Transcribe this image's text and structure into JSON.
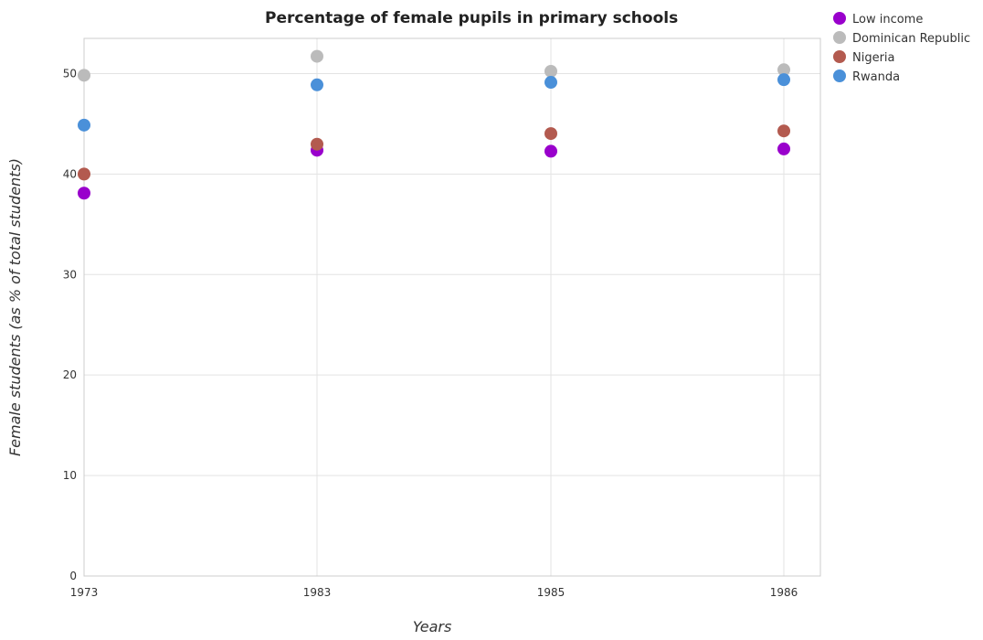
{
  "chart_data": {
    "type": "scatter",
    "title": "Percentage of female pupils in primary schools",
    "xlabel": "Years",
    "ylabel": "Female students (as % of total students)",
    "categories": [
      "1973",
      "1983",
      "1985",
      "1986"
    ],
    "y_ticks": [
      "0",
      "10",
      "20",
      "30",
      "40",
      "50"
    ],
    "ylim": [
      0,
      53.5
    ],
    "grid": true,
    "legend_position": "top-right",
    "series": [
      {
        "name": "Low income",
        "color": "#9900cc",
        "values": [
          38.1,
          42.37,
          42.27,
          42.5
        ]
      },
      {
        "name": "Dominican Republic",
        "color": "#bbbbbb",
        "values": [
          49.83,
          51.72,
          50.23,
          50.38
        ]
      },
      {
        "name": "Nigeria",
        "color": "#b35a4f",
        "values": [
          40.0,
          42.97,
          44.03,
          44.29
        ]
      },
      {
        "name": "Rwanda",
        "color": "#4a90d9",
        "values": [
          44.87,
          48.88,
          49.13,
          49.39
        ]
      }
    ]
  }
}
